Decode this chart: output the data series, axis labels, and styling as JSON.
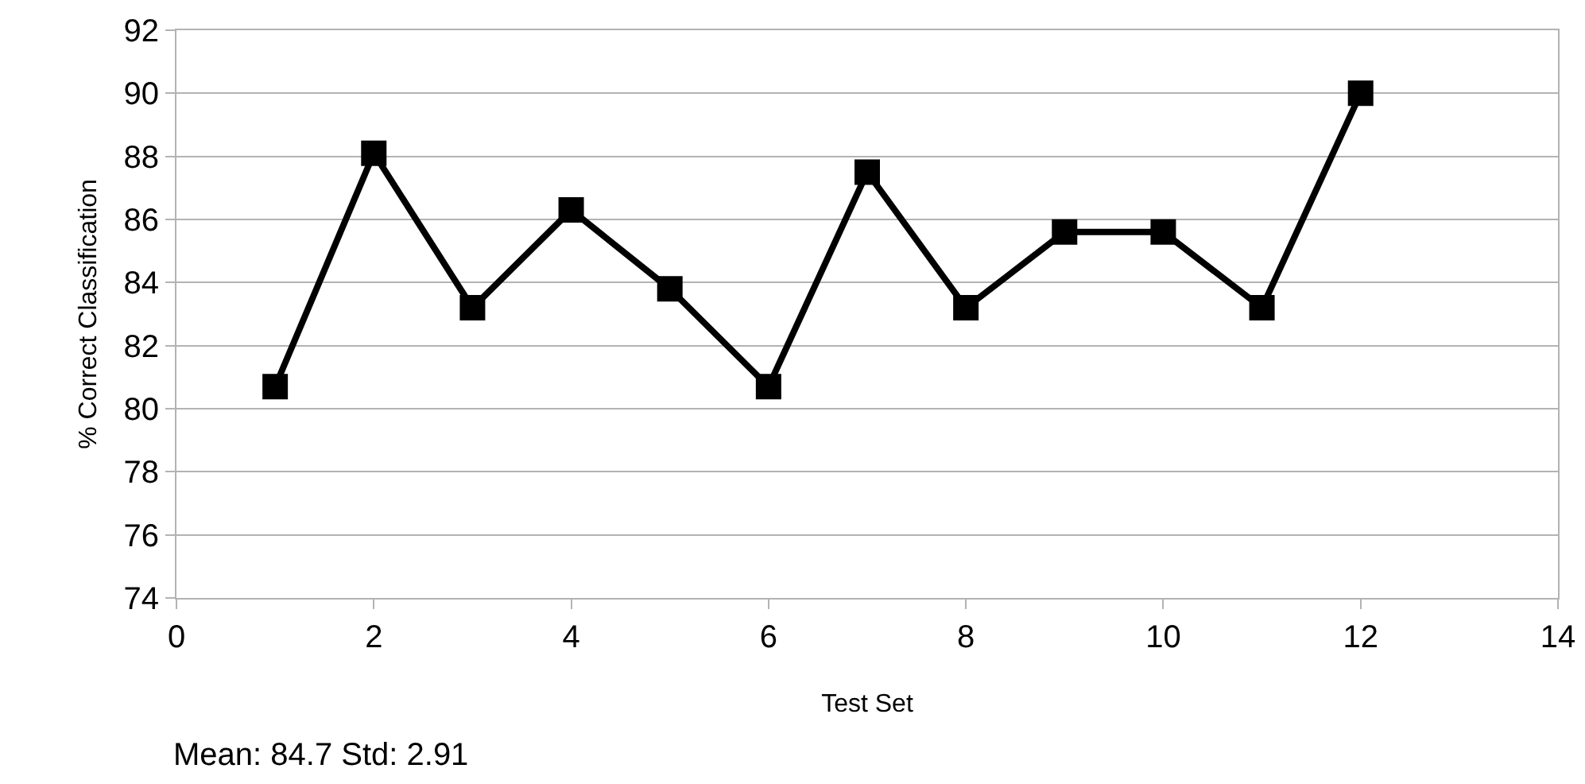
{
  "chart_data": {
    "type": "line",
    "xlabel": "Test Set",
    "ylabel": "% Correct Classification",
    "x": [
      1,
      2,
      3,
      4,
      5,
      6,
      7,
      8,
      9,
      10,
      11,
      12
    ],
    "series": [
      {
        "color": "#000000",
        "values": [
          80.7,
          88.1,
          83.2,
          86.3,
          83.8,
          80.7,
          87.5,
          83.2,
          85.6,
          85.6,
          83.2,
          90
        ]
      }
    ],
    "xlim": [
      0,
      14
    ],
    "xticks": [
      0,
      2,
      4,
      6,
      8,
      10,
      12,
      14
    ],
    "ylim": [
      74,
      92
    ],
    "yticks": [
      74,
      76,
      78,
      80,
      82,
      84,
      86,
      88,
      90,
      92
    ],
    "grid": "y",
    "marker": "square",
    "line_style": "solid",
    "annotations": [
      "Mean: 84.7 Std: 2.91"
    ]
  }
}
